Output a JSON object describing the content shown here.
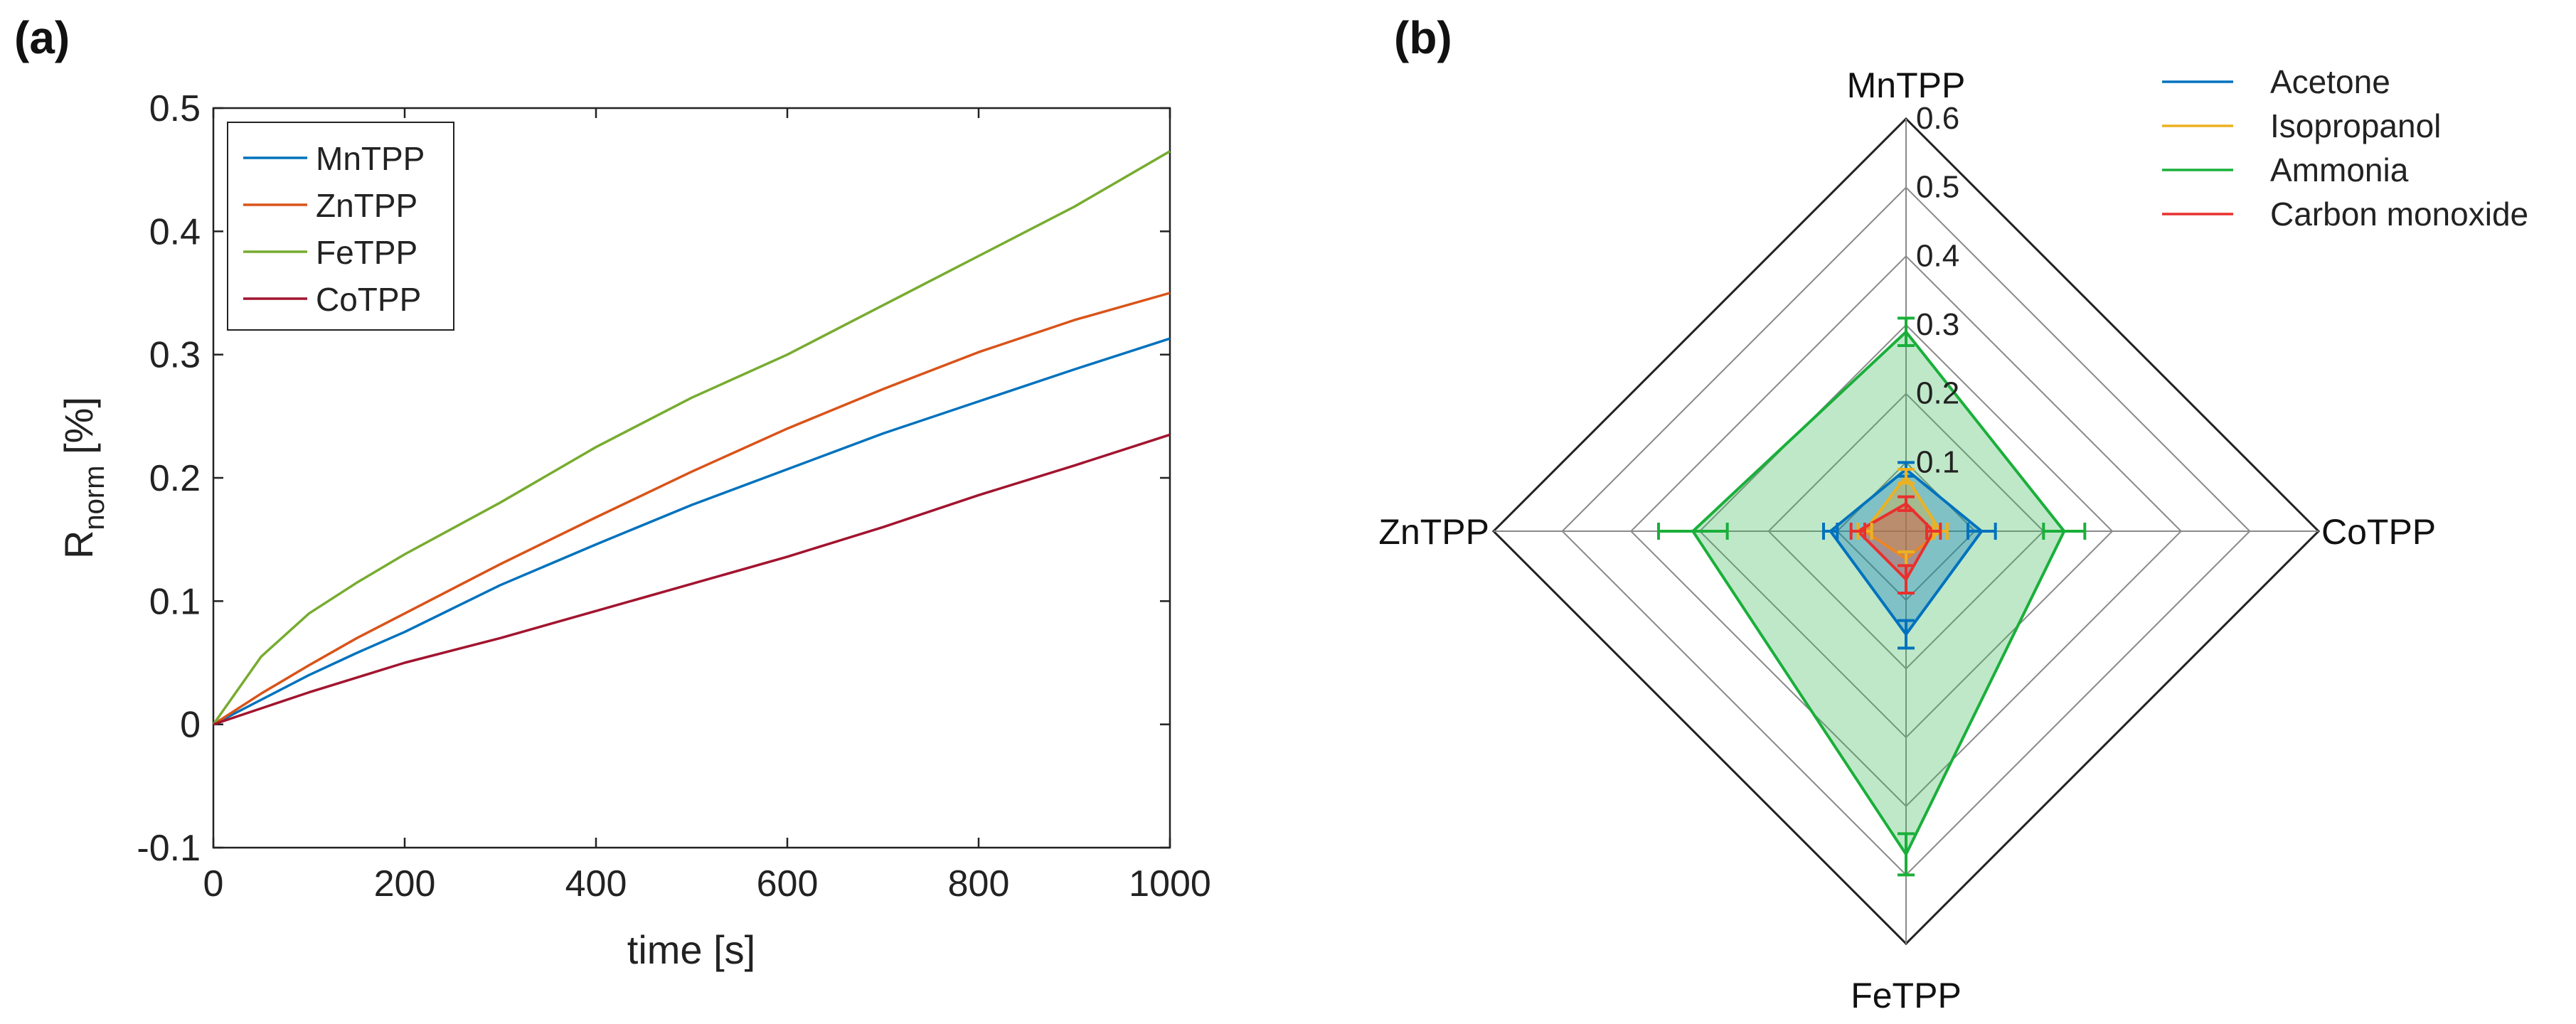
{
  "chart_data": [
    {
      "panel": "(a)",
      "type": "line",
      "xlabel": "time [s]",
      "ylabel_main": "R",
      "ylabel_sub": "norm",
      "ylabel_unit": " [%]",
      "xlim": [
        0,
        1000
      ],
      "ylim": [
        -0.1,
        0.5
      ],
      "xticks": [
        0,
        200,
        400,
        600,
        800,
        1000
      ],
      "xtick_labels": [
        "0",
        "200",
        "400",
        "600",
        "800",
        "1000"
      ],
      "yticks": [
        -0.1,
        0,
        0.1,
        0.2,
        0.3,
        0.4,
        0.5
      ],
      "ytick_labels": [
        "-0.1",
        "0",
        "0.1",
        "0.2",
        "0.3",
        "0.4",
        "0.5"
      ],
      "legend_position": "top-left",
      "series": [
        {
          "name": "MnTPP",
          "color": "#0072BD",
          "x": [
            0,
            50,
            100,
            150,
            200,
            300,
            400,
            500,
            600,
            700,
            800,
            900,
            1000
          ],
          "values": [
            0,
            0.02,
            0.04,
            0.058,
            0.075,
            0.113,
            0.146,
            0.178,
            0.207,
            0.236,
            0.262,
            0.288,
            0.313
          ]
        },
        {
          "name": "ZnTPP",
          "color": "#D95319",
          "x": [
            0,
            50,
            100,
            150,
            200,
            300,
            400,
            500,
            600,
            700,
            800,
            900,
            1000
          ],
          "values": [
            0,
            0.025,
            0.048,
            0.07,
            0.09,
            0.13,
            0.168,
            0.205,
            0.24,
            0.272,
            0.302,
            0.328,
            0.35
          ]
        },
        {
          "name": "FeTPP",
          "color": "#77AC30",
          "x": [
            0,
            50,
            100,
            150,
            200,
            300,
            400,
            500,
            600,
            700,
            800,
            900,
            1000
          ],
          "values": [
            0,
            0.055,
            0.09,
            0.115,
            0.138,
            0.18,
            0.225,
            0.265,
            0.3,
            0.34,
            0.38,
            0.42,
            0.465
          ]
        },
        {
          "name": "CoTPP",
          "color": "#A2142F",
          "x": [
            0,
            50,
            100,
            150,
            200,
            300,
            400,
            500,
            600,
            700,
            800,
            900,
            1000
          ],
          "values": [
            0,
            0.013,
            0.026,
            0.038,
            0.05,
            0.07,
            0.092,
            0.114,
            0.136,
            0.16,
            0.186,
            0.21,
            0.235
          ]
        }
      ]
    },
    {
      "panel": "(b)",
      "type": "radar",
      "axes": [
        "MnTPP",
        "CoTPP",
        "FeTPP",
        "ZnTPP"
      ],
      "rmax": 0.6,
      "rticks": [
        0.1,
        0.2,
        0.3,
        0.4,
        0.5,
        0.6
      ],
      "rtick_labels": [
        "0.1",
        "0.2",
        "0.3",
        "0.4",
        "0.5",
        "0.6"
      ],
      "legend_position": "top-right",
      "series": [
        {
          "name": "Acetone",
          "color": "#0072BD",
          "fill": "#0072BD",
          "values": [
            0.09,
            0.11,
            0.15,
            0.11
          ],
          "errors": [
            0.01,
            0.02,
            0.02,
            0.01
          ]
        },
        {
          "name": "Isopropanol",
          "color": "#EDB120",
          "fill": "#EDB120",
          "values": [
            0.08,
            0.05,
            0.04,
            0.06
          ],
          "errors": [
            0.01,
            0.01,
            0.01,
            0.01
          ]
        },
        {
          "name": "Ammonia",
          "color": "#1AAF3A",
          "fill": "#3CB95A",
          "values": [
            0.29,
            0.23,
            0.47,
            0.31
          ],
          "errors": [
            0.02,
            0.03,
            0.03,
            0.05
          ]
        },
        {
          "name": "Carbon monoxide",
          "color": "#E8302D",
          "fill": "#E8302D",
          "values": [
            0.04,
            0.04,
            0.07,
            0.07
          ],
          "errors": [
            0.01,
            0.01,
            0.02,
            0.01
          ]
        }
      ]
    }
  ]
}
